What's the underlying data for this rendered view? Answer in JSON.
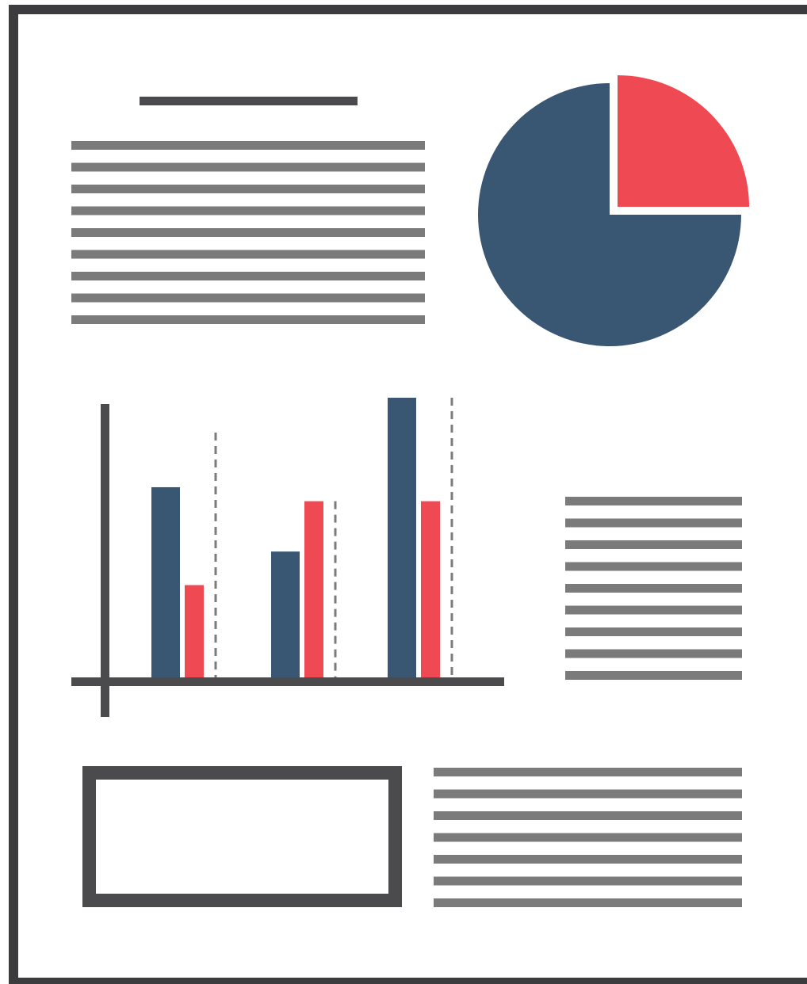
{
  "colors": {
    "frame": "#3c3c3e",
    "heading": "#4b4b4d",
    "text_line": "#7c7b7b",
    "axis": "#4b4b4d",
    "gridline": "#7c7b7b",
    "accent_navy": "#395772",
    "accent_red": "#ef4953",
    "background": "#ffffff"
  },
  "icon": "document-report-icon",
  "text_blocks": {
    "top_left": {
      "line_count": 9
    },
    "middle_right": {
      "line_count": 9
    },
    "bottom_right": {
      "line_count": 7
    }
  },
  "chart_data": [
    {
      "type": "pie",
      "values": [
        75,
        25
      ],
      "colors": [
        "#395772",
        "#ef4953"
      ],
      "exploded_slice": 1
    },
    {
      "type": "bar",
      "series": [
        {
          "values": [
            68,
            45,
            100
          ],
          "color": "#395772"
        },
        {
          "values": [
            33,
            63,
            63
          ],
          "color": "#ef4953"
        }
      ],
      "categories": [
        "",
        "",
        ""
      ],
      "ylim": [
        0,
        100
      ],
      "grid": false
    }
  ]
}
